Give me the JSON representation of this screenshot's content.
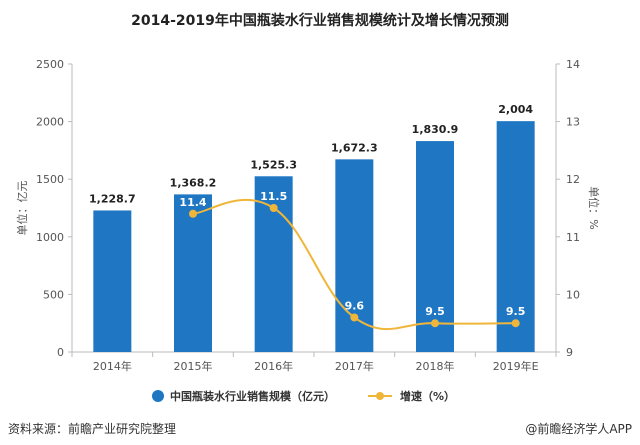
{
  "chart_data": {
    "type": "bar+line",
    "title": "2014-2019年中国瓶装水行业销售规模统计及增长情况预测",
    "categories": [
      "2014年",
      "2015年",
      "2016年",
      "2017年",
      "2018年",
      "2019年E"
    ],
    "series": [
      {
        "name": "中国瓶装水行业销售规模（亿元）",
        "type": "bar",
        "axis": "left",
        "color": "#1f77c4",
        "values": [
          1228.7,
          1368.2,
          1525.3,
          1672.3,
          1830.9,
          2004
        ],
        "labels": [
          "1,228.7",
          "1,368.2",
          "1,525.3",
          "1,672.3",
          "1,830.9",
          "2,004"
        ]
      },
      {
        "name": "增速（%）",
        "type": "line",
        "axis": "right",
        "color": "#f0b63a",
        "values": [
          null,
          11.4,
          11.5,
          9.6,
          9.5,
          9.5
        ],
        "labels": [
          "",
          "11.4",
          "11.5",
          "9.6",
          "9.5",
          "9.5"
        ]
      }
    ],
    "y_left": {
      "label": "单位：亿元",
      "range": [
        0,
        2500
      ],
      "ticks": [
        0,
        500,
        1000,
        1500,
        2000,
        2500
      ],
      "tick_labels": [
        "0",
        "500",
        "1000",
        "1500",
        "2000",
        "2500"
      ]
    },
    "y_right": {
      "label": "单位：%",
      "range": [
        9,
        14
      ],
      "ticks": [
        9,
        10,
        11,
        12,
        13,
        14
      ],
      "tick_labels": [
        "9",
        "10",
        "11",
        "12",
        "13",
        "14"
      ]
    },
    "legend_position": "bottom",
    "grid": false
  },
  "footer": {
    "source": "资料来源：前瞻产业研究院整理",
    "brand": "@前瞻经济学人APP"
  }
}
